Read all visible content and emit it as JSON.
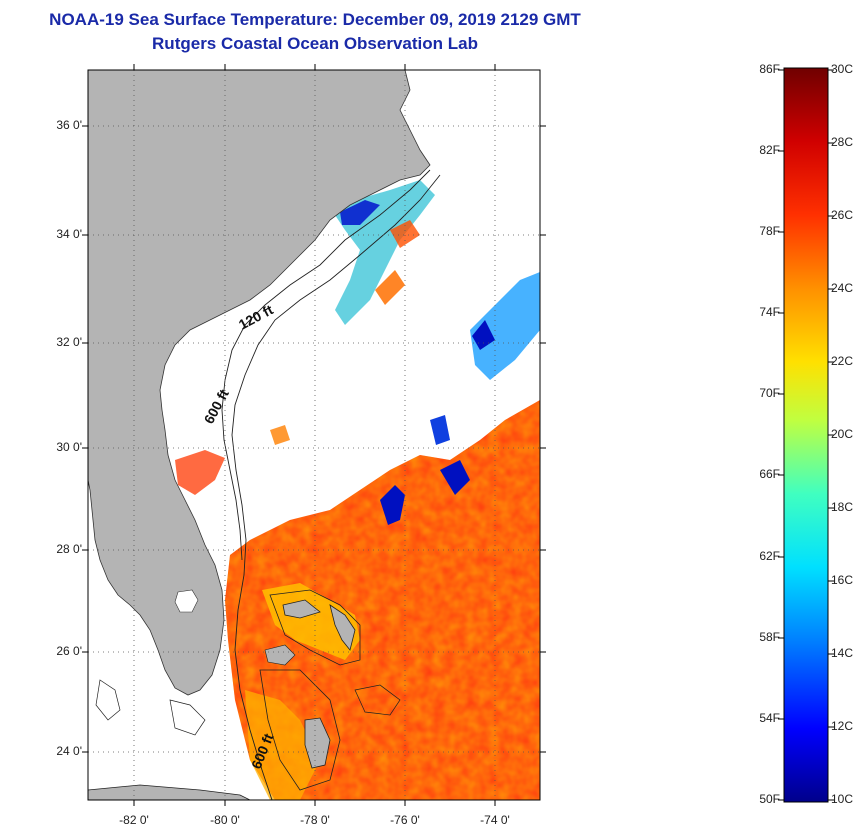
{
  "title": "NOAA-19 Sea Surface Temperature:  December 09, 2019 2129 GMT",
  "subtitle": "Rutgers Coastal Ocean Observation Lab",
  "lat_labels": [
    "36 0'",
    "34 0'",
    "32 0'",
    "30 0'",
    "28 0'",
    "26 0'",
    "24 0'"
  ],
  "lon_labels": [
    "-82 0'",
    "-80 0'",
    "-78 0'",
    "-76 0'",
    "-74 0'"
  ],
  "contour_labels": [
    "120 ft",
    "600 ft",
    "600 ft"
  ],
  "colorbar": {
    "fahrenheit": [
      "86F",
      "82F",
      "78F",
      "74F",
      "70F",
      "66F",
      "62F",
      "58F",
      "54F",
      "50F"
    ],
    "celsius": [
      "30C",
      "28C",
      "26C",
      "24C",
      "22C",
      "20C",
      "18C",
      "16C",
      "14C",
      "12C",
      "10C"
    ],
    "colors": [
      "#00008b",
      "#0000ff",
      "#0080ff",
      "#00e0ff",
      "#40ffc0",
      "#c0ff40",
      "#ffe000",
      "#ff9000",
      "#ff2000",
      "#d00000",
      "#700000"
    ]
  },
  "colors": {
    "title": "#1a2aa8",
    "land": "#b4b4b4",
    "cloud": "#ffffff"
  }
}
